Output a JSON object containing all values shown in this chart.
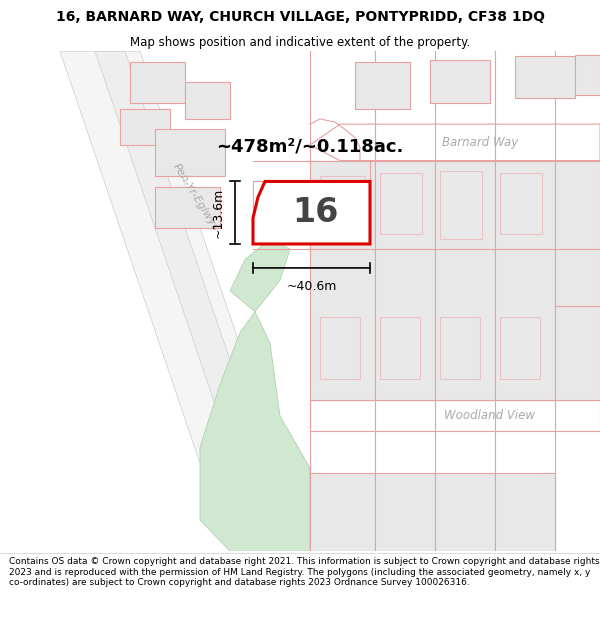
{
  "title_line1": "16, BARNARD WAY, CHURCH VILLAGE, PONTYPRIDD, CF38 1DQ",
  "title_line2": "Map shows position and indicative extent of the property.",
  "footer_text": "Contains OS data © Crown copyright and database right 2021. This information is subject to Crown copyright and database rights 2023 and is reproduced with the permission of HM Land Registry. The polygons (including the associated geometry, namely x, y co-ordinates) are subject to Crown copyright and database rights 2023 Ordnance Survey 100026316.",
  "area_text": "~478m²/~0.118ac.",
  "parcel_label": "16",
  "dim_width": "~40.6m",
  "dim_height": "~13.6m",
  "barnard_way_label": "Barnard Way",
  "woodland_view_label": "Woodland View",
  "pen_yr_eglwys_label": "Pen-Yr-Eglwys",
  "map_bg": "#ffffff",
  "parcel_fill": "#ffffff",
  "parcel_edge": "#dd0000",
  "plot_fill": "#e8e8e8",
  "plot_edge": "#e8a0a0",
  "road_fill": "#ffffff",
  "road_edge": "#e8a0a0",
  "green_fill": "#d0e8d0",
  "diag_road_fill": "#f5f5f5",
  "diag_road_edge": "#cccccc",
  "label_color": "#aaaaaa",
  "dim_color": "#000000",
  "area_color": "#000000",
  "num_color": "#444444",
  "title_fontsize": 10,
  "subtitle_fontsize": 8.5,
  "footer_fontsize": 6.5
}
